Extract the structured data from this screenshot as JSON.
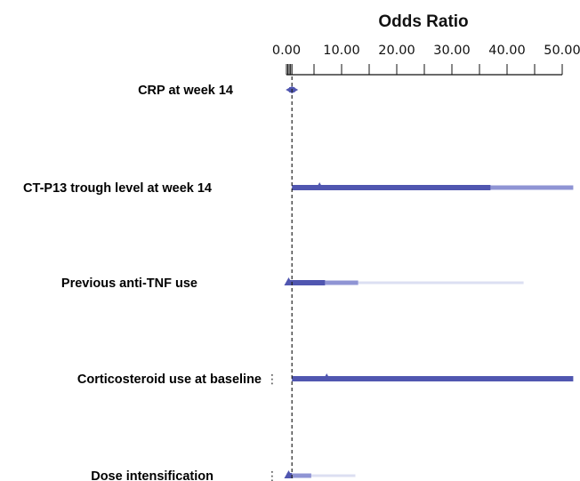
{
  "chart_data": {
    "type": "forest",
    "title": "Odds Ratio",
    "xlim": [
      0,
      50
    ],
    "tick_labels": [
      "0.00",
      "10.00",
      "20.00",
      "30.00",
      "40.00",
      "50.00"
    ],
    "tick_values": [
      0,
      10,
      20,
      30,
      40,
      50
    ],
    "reference_line": 1,
    "colors": {
      "strong": "#5056b0",
      "medium": "#8f94d4",
      "light": "#dcdff2",
      "reference": "#222222"
    },
    "rows": [
      {
        "label": "CRP at week 14",
        "or": 1.0,
        "inner": [
          0.5,
          1.5
        ],
        "outer": [
          0.5,
          1.5
        ],
        "full": [
          0.5,
          1.5
        ],
        "marker": "diamond",
        "dots": false
      },
      {
        "label": "CT-P13 trough level at week 14",
        "or": 6.0,
        "inner": [
          1.0,
          37.0
        ],
        "outer": [
          37.0,
          52.0
        ],
        "full": [
          37.0,
          52.0
        ],
        "marker": "triangle",
        "dots": false
      },
      {
        "label": "Previous anti-TNF use",
        "or": 0.4,
        "inner": [
          0.2,
          7.0
        ],
        "outer": [
          7.0,
          13.0
        ],
        "full": [
          13.0,
          43.0
        ],
        "marker": "triangle",
        "dots": false
      },
      {
        "label": "Corticosteroid use at baseline",
        "or": 7.3,
        "inner": [
          1.0,
          52.0
        ],
        "outer": [
          52.0,
          52.0
        ],
        "full": [
          52.0,
          52.0
        ],
        "marker": "triangle",
        "dots": true
      },
      {
        "label": "Dose intensification",
        "or": 0.4,
        "inner": [
          0.1,
          1.0
        ],
        "outer": [
          1.0,
          4.5
        ],
        "full": [
          4.5,
          12.5
        ],
        "marker": "triangle",
        "dots": true
      }
    ]
  }
}
